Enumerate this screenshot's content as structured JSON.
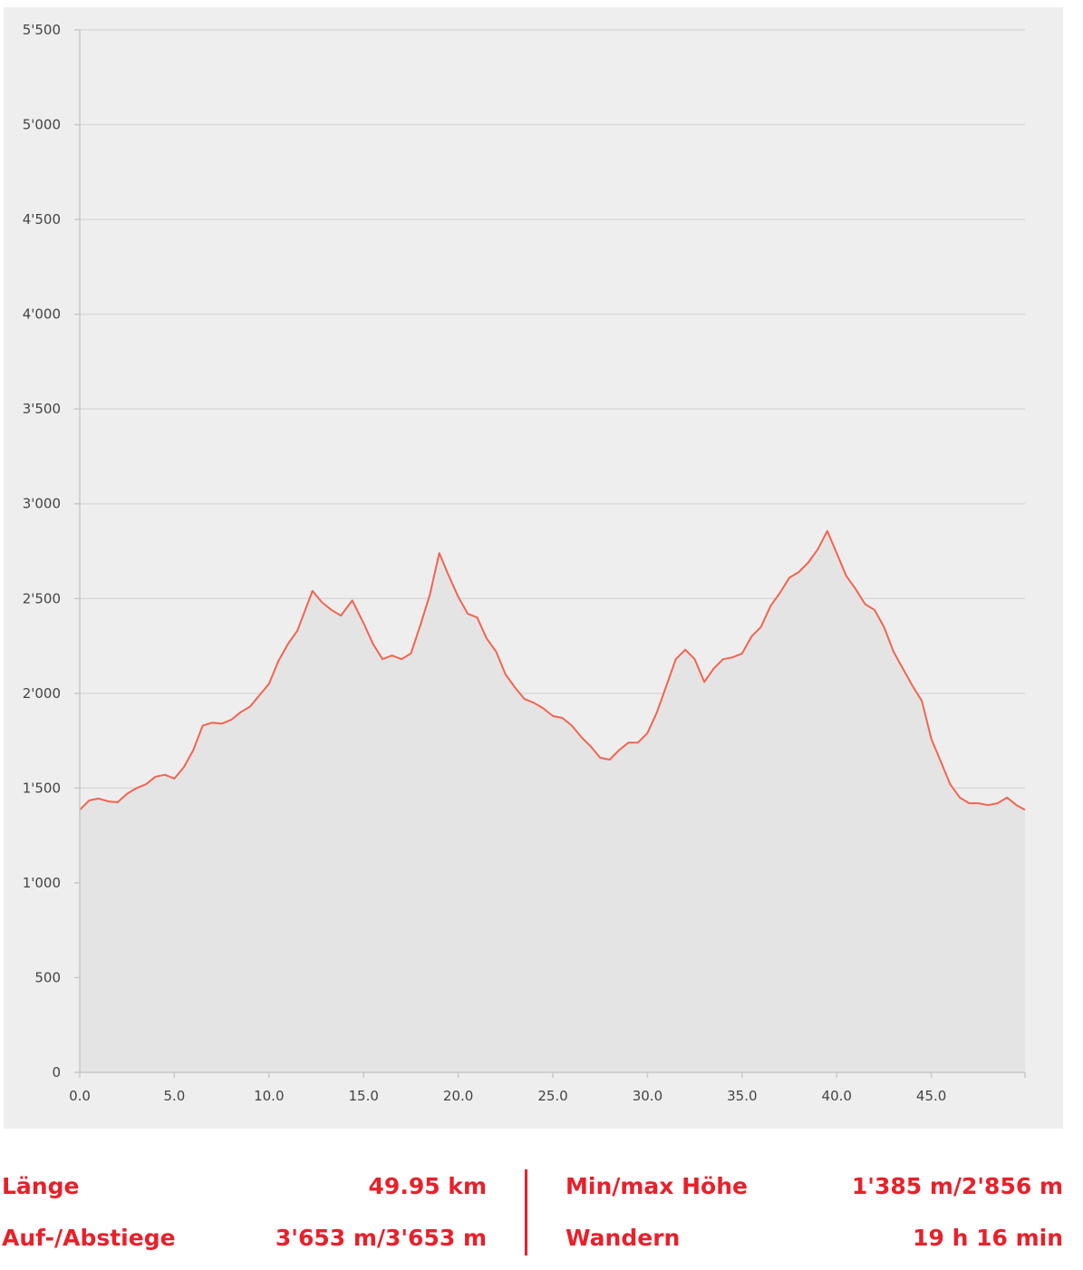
{
  "chart_data": {
    "type": "area",
    "title": "",
    "xlabel": "",
    "ylabel": "",
    "xlim": [
      0,
      49.95
    ],
    "ylim": [
      0,
      5500
    ],
    "x_ticks": [
      0,
      5,
      10,
      15,
      20,
      25,
      30,
      35,
      40,
      45
    ],
    "x_tick_labels": [
      "0.0",
      "5.0",
      "10.0",
      "15.0",
      "20.0",
      "25.0",
      "30.0",
      "35.0",
      "40.0",
      "45.0"
    ],
    "y_ticks": [
      0,
      500,
      1000,
      1500,
      2000,
      2500,
      3000,
      3500,
      4000,
      4500,
      5000,
      5500
    ],
    "y_tick_labels": [
      "0",
      "500",
      "1'000",
      "1'500",
      "2'000",
      "2'500",
      "3'000",
      "3'500",
      "4'000",
      "4'500",
      "5'000",
      "5'500"
    ],
    "grid": true,
    "line_color": "#f26450",
    "fill_color": "#e4e4e4",
    "x": [
      0,
      0.5,
      1,
      1.5,
      2,
      2.5,
      3,
      3.5,
      4,
      4.5,
      5,
      5.5,
      6,
      6.5,
      7,
      7.5,
      8,
      8.5,
      9,
      9.5,
      10,
      10.5,
      11,
      11.5,
      12.3,
      12.8,
      13.3,
      13.8,
      14.4,
      15,
      15.5,
      16,
      16.5,
      17,
      17.5,
      18,
      18.5,
      19,
      19.5,
      20,
      20.5,
      21,
      21.5,
      22,
      22.5,
      23,
      23.5,
      24,
      24.5,
      25,
      25.5,
      26,
      26.5,
      27,
      27.5,
      28,
      28.5,
      29,
      29.5,
      30,
      30.5,
      31,
      31.5,
      32,
      32.5,
      33,
      33.5,
      34,
      34.5,
      35,
      35.5,
      36,
      36.5,
      37,
      37.5,
      38,
      38.5,
      39,
      39.5,
      40,
      40.5,
      41,
      41.5,
      42,
      42.5,
      43,
      43.5,
      44,
      44.5,
      45,
      45.5,
      46,
      46.5,
      47,
      47.5,
      48,
      48.5,
      49,
      49.5,
      49.95
    ],
    "y": [
      1385,
      1435,
      1445,
      1430,
      1425,
      1470,
      1500,
      1520,
      1560,
      1570,
      1550,
      1610,
      1700,
      1830,
      1845,
      1840,
      1860,
      1900,
      1930,
      1990,
      2050,
      2170,
      2260,
      2330,
      2540,
      2480,
      2440,
      2410,
      2490,
      2370,
      2260,
      2180,
      2200,
      2180,
      2210,
      2360,
      2520,
      2740,
      2620,
      2510,
      2420,
      2400,
      2290,
      2220,
      2100,
      2030,
      1970,
      1950,
      1920,
      1880,
      1870,
      1830,
      1770,
      1720,
      1660,
      1650,
      1700,
      1740,
      1740,
      1790,
      1900,
      2040,
      2180,
      2230,
      2180,
      2060,
      2130,
      2180,
      2190,
      2210,
      2300,
      2350,
      2460,
      2530,
      2610,
      2640,
      2690,
      2760,
      2856,
      2740,
      2620,
      2550,
      2470,
      2440,
      2350,
      2220,
      2130,
      2040,
      1960,
      1760,
      1640,
      1520,
      1450,
      1420,
      1420,
      1410,
      1420,
      1450,
      1410,
      1385
    ]
  },
  "stats": {
    "length_label": "Länge",
    "length_value": "49.95 km",
    "ascent_label": "Auf-/Abstiege",
    "ascent_value": "3'653 m/3'653 m",
    "minmax_label": "Min/max Höhe",
    "minmax_value": "1'385 m/2'856 m",
    "time_label": "Wandern",
    "time_value": "19 h 16 min"
  }
}
